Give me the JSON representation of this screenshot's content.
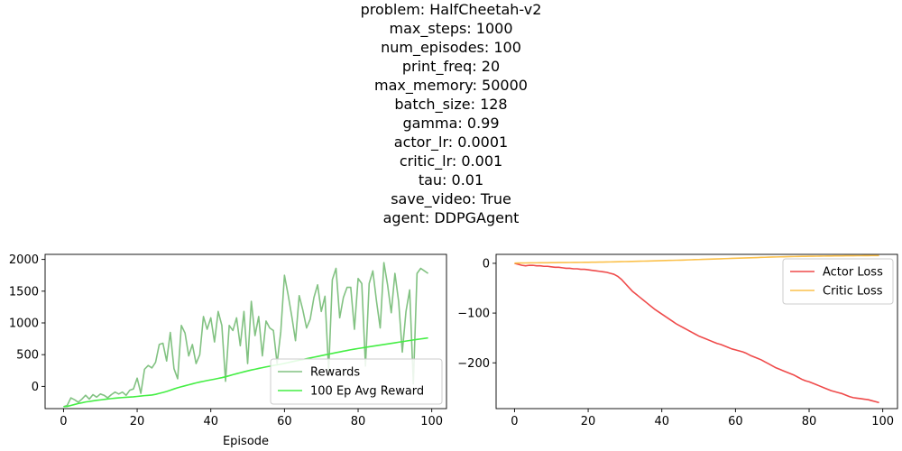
{
  "figure": {
    "title_lines": [
      "problem: HalfCheetah-v2",
      "max_steps: 1000",
      "num_episodes: 100",
      "print_freq: 20",
      "max_memory: 50000",
      "batch_size: 128",
      "gamma: 0.99",
      "actor_lr: 0.0001",
      "critic_lr: 0.001",
      "tau: 0.01",
      "save_video: True",
      "agent: DDPGAgent"
    ]
  },
  "chart_data": [
    {
      "type": "line",
      "xlabel": "Episode",
      "ylabel": "",
      "xlim": [
        -5,
        104
      ],
      "ylim": [
        -350,
        2080
      ],
      "xticks": [
        0,
        20,
        40,
        60,
        80,
        100
      ],
      "yticks": [
        0,
        500,
        1000,
        1500,
        2000
      ],
      "grid": false,
      "legend_position": "lower-right",
      "series": [
        {
          "name": "Rewards",
          "color": "#82c282",
          "x": [
            0,
            1,
            2,
            3,
            4,
            5,
            6,
            7,
            8,
            9,
            10,
            11,
            12,
            13,
            14,
            15,
            16,
            17,
            18,
            19,
            20,
            21,
            22,
            23,
            24,
            25,
            26,
            27,
            28,
            29,
            30,
            31,
            32,
            33,
            34,
            35,
            36,
            37,
            38,
            39,
            40,
            41,
            42,
            43,
            44,
            45,
            46,
            47,
            48,
            49,
            50,
            51,
            52,
            53,
            54,
            55,
            56,
            57,
            58,
            59,
            60,
            61,
            62,
            63,
            64,
            65,
            66,
            67,
            68,
            69,
            70,
            71,
            72,
            73,
            74,
            75,
            76,
            77,
            78,
            79,
            80,
            81,
            82,
            83,
            84,
            85,
            86,
            87,
            88,
            89,
            90,
            91,
            92,
            93,
            94,
            95,
            96,
            97,
            98,
            99
          ],
          "values": [
            -320,
            -300,
            -180,
            -210,
            -250,
            -200,
            -140,
            -200,
            -130,
            -170,
            -120,
            -140,
            -180,
            -130,
            -90,
            -120,
            -90,
            -140,
            -60,
            -40,
            130,
            -110,
            270,
            330,
            290,
            380,
            660,
            680,
            400,
            850,
            280,
            120,
            960,
            840,
            480,
            660,
            360,
            500,
            1100,
            900,
            1080,
            700,
            1180,
            960,
            80,
            960,
            880,
            1080,
            640,
            1180,
            360,
            1340,
            800,
            1100,
            480,
            1030,
            920,
            880,
            360,
            860,
            1750,
            1440,
            1100,
            720,
            1430,
            1200,
            920,
            1060,
            1400,
            1600,
            1180,
            1420,
            240,
            1680,
            1860,
            1080,
            1400,
            1560,
            1560,
            900,
            1700,
            1620,
            320,
            1620,
            1820,
            1340,
            920,
            1950,
            1600,
            1160,
            1780,
            1340,
            540,
            1180,
            1520,
            40,
            1780,
            1860,
            1820,
            1780
          ]
        },
        {
          "name": "100 Ep Avg Reward",
          "color": "#44ee44",
          "x": [
            0,
            1,
            2,
            3,
            4,
            5,
            6,
            7,
            8,
            9,
            10,
            11,
            12,
            13,
            14,
            15,
            16,
            17,
            18,
            19,
            20,
            21,
            22,
            23,
            24,
            25,
            26,
            27,
            28,
            29,
            30,
            31,
            32,
            33,
            34,
            35,
            36,
            37,
            38,
            39,
            40,
            41,
            42,
            43,
            44,
            45,
            46,
            47,
            48,
            49,
            50,
            51,
            52,
            53,
            54,
            55,
            56,
            57,
            58,
            59,
            60,
            61,
            62,
            63,
            64,
            65,
            66,
            67,
            68,
            69,
            70,
            71,
            72,
            73,
            74,
            75,
            76,
            77,
            78,
            79,
            80,
            81,
            82,
            83,
            84,
            85,
            86,
            87,
            88,
            89,
            90,
            91,
            92,
            93,
            94,
            95,
            96,
            97,
            98,
            99
          ],
          "values": [
            -320,
            -315,
            -300,
            -285,
            -270,
            -258,
            -245,
            -238,
            -228,
            -220,
            -213,
            -205,
            -198,
            -192,
            -186,
            -180,
            -176,
            -172,
            -168,
            -164,
            -158,
            -152,
            -146,
            -141,
            -136,
            -125,
            -110,
            -96,
            -80,
            -60,
            -40,
            -22,
            -5,
            10,
            25,
            40,
            55,
            68,
            80,
            92,
            103,
            114,
            126,
            138,
            152,
            168,
            185,
            200,
            215,
            230,
            244,
            258,
            270,
            283,
            295,
            307,
            318,
            329,
            339,
            350,
            362,
            375,
            388,
            400,
            412,
            424,
            436,
            448,
            460,
            472,
            484,
            496,
            508,
            520,
            532,
            543,
            555,
            566,
            577,
            587,
            597,
            606,
            615,
            624,
            633,
            642,
            651,
            660,
            669,
            678,
            687,
            696,
            705,
            714,
            723,
            732,
            740,
            748,
            756,
            764
          ]
        }
      ]
    },
    {
      "type": "line",
      "xlabel": "",
      "ylabel": "",
      "xlim": [
        -5,
        104
      ],
      "ylim": [
        -292,
        18
      ],
      "xticks": [
        0,
        20,
        40,
        60,
        80,
        100
      ],
      "yticks": [
        0,
        -100,
        -200
      ],
      "grid": false,
      "legend_position": "top-right",
      "series": [
        {
          "name": "Actor Loss",
          "color": "#ef4a4a",
          "x": [
            0,
            1,
            2,
            3,
            4,
            5,
            6,
            7,
            8,
            9,
            10,
            11,
            12,
            13,
            14,
            15,
            16,
            17,
            18,
            19,
            20,
            21,
            22,
            23,
            24,
            25,
            26,
            27,
            28,
            29,
            30,
            31,
            32,
            33,
            34,
            35,
            36,
            37,
            38,
            39,
            40,
            41,
            42,
            43,
            44,
            45,
            46,
            47,
            48,
            49,
            50,
            51,
            52,
            53,
            54,
            55,
            56,
            57,
            58,
            59,
            60,
            61,
            62,
            63,
            64,
            65,
            66,
            67,
            68,
            69,
            70,
            71,
            72,
            73,
            74,
            75,
            76,
            77,
            78,
            79,
            80,
            81,
            82,
            83,
            84,
            85,
            86,
            87,
            88,
            89,
            90,
            91,
            92,
            93,
            94,
            95,
            96,
            97,
            98,
            99
          ],
          "values": [
            0,
            -2,
            -4,
            -5,
            -4,
            -4,
            -5,
            -5,
            -6,
            -6,
            -7,
            -8,
            -8,
            -9,
            -10,
            -10,
            -11,
            -11,
            -12,
            -12,
            -13,
            -14,
            -15,
            -16,
            -17,
            -18,
            -20,
            -22,
            -26,
            -32,
            -40,
            -48,
            -56,
            -62,
            -68,
            -74,
            -80,
            -86,
            -92,
            -97,
            -102,
            -107,
            -112,
            -117,
            -122,
            -126,
            -130,
            -134,
            -138,
            -142,
            -146,
            -149,
            -152,
            -155,
            -158,
            -161,
            -163,
            -166,
            -169,
            -172,
            -174,
            -176,
            -178,
            -181,
            -185,
            -188,
            -191,
            -194,
            -198,
            -202,
            -206,
            -210,
            -213,
            -216,
            -219,
            -222,
            -225,
            -229,
            -233,
            -236,
            -238,
            -241,
            -244,
            -247,
            -250,
            -253,
            -256,
            -258,
            -260,
            -262,
            -265,
            -268,
            -270,
            -271,
            -272,
            -273,
            -274,
            -276,
            -278,
            -280
          ]
        },
        {
          "name": "Critic Loss",
          "color": "#fbc14c",
          "x": [
            0,
            1,
            2,
            3,
            4,
            5,
            6,
            7,
            8,
            9,
            10,
            11,
            12,
            13,
            14,
            15,
            16,
            17,
            18,
            19,
            20,
            21,
            22,
            23,
            24,
            25,
            26,
            27,
            28,
            29,
            30,
            31,
            32,
            33,
            34,
            35,
            36,
            37,
            38,
            39,
            40,
            41,
            42,
            43,
            44,
            45,
            46,
            47,
            48,
            49,
            50,
            51,
            52,
            53,
            54,
            55,
            56,
            57,
            58,
            59,
            60,
            61,
            62,
            63,
            64,
            65,
            66,
            67,
            68,
            69,
            70,
            71,
            72,
            73,
            74,
            75,
            76,
            77,
            78,
            79,
            80,
            81,
            82,
            83,
            84,
            85,
            86,
            87,
            88,
            89,
            90,
            91,
            92,
            93,
            94,
            95,
            96,
            97,
            98,
            99
          ],
          "values": [
            0.5,
            0.6,
            0.7,
            0.8,
            0.9,
            1.0,
            1.0,
            1.1,
            1.2,
            1.2,
            1.3,
            1.4,
            1.5,
            1.5,
            1.6,
            1.7,
            1.8,
            1.8,
            1.9,
            2.0,
            2.1,
            2.2,
            2.3,
            2.4,
            2.5,
            2.7,
            2.8,
            3.0,
            3.1,
            3.3,
            3.5,
            3.6,
            3.8,
            4.0,
            4.2,
            4.4,
            4.6,
            4.8,
            5.0,
            5.2,
            5.4,
            5.6,
            5.8,
            6.0,
            6.2,
            6.4,
            6.6,
            6.9,
            7.1,
            7.4,
            7.6,
            7.9,
            8.1,
            8.4,
            8.6,
            8.9,
            9.1,
            9.4,
            9.6,
            9.9,
            10.1,
            10.4,
            10.6,
            10.9,
            11.1,
            11.4,
            11.6,
            11.9,
            12.1,
            12.4,
            12.6,
            12.8,
            13.0,
            13.2,
            13.4,
            13.5,
            13.7,
            13.8,
            14.0,
            14.1,
            14.2,
            14.3,
            14.4,
            14.5,
            14.6,
            14.7,
            14.8,
            14.9,
            15.0,
            15.0,
            15.1,
            15.2,
            15.2,
            15.3,
            15.3,
            15.4,
            15.4,
            15.5,
            15.5,
            15.5
          ]
        }
      ]
    }
  ]
}
